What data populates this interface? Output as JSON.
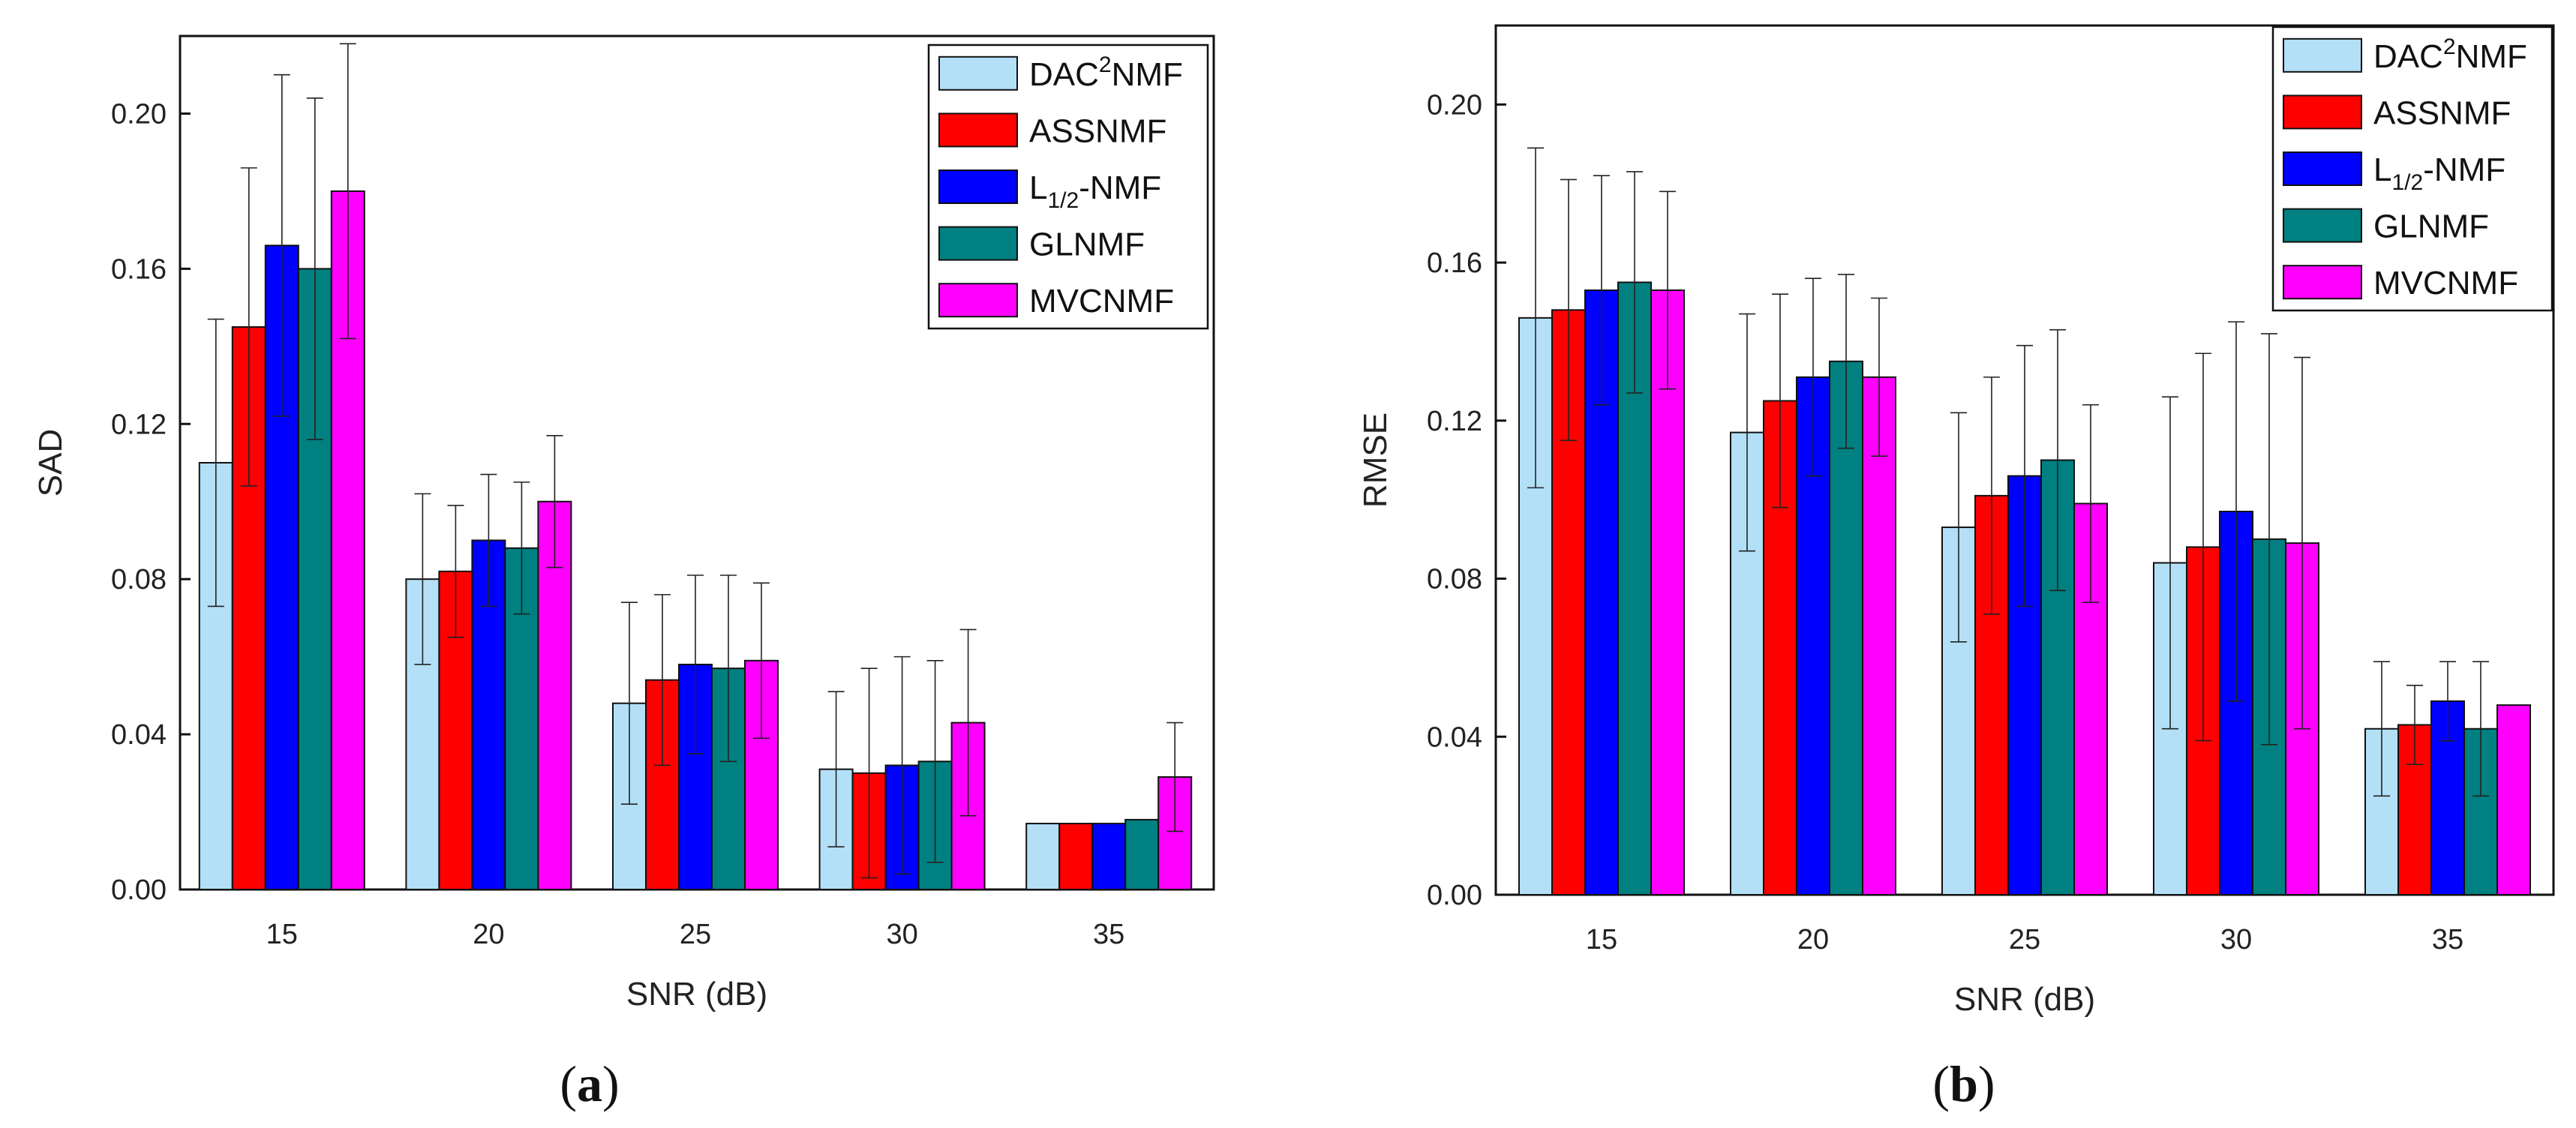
{
  "colors": {
    "DAC2NMF": "#b3e0f7",
    "ASSNMF": "#ff0000",
    "L12NMF": "#0000ff",
    "GLNMF": "#008080",
    "MVCNMF": "#ff00ff"
  },
  "chart_data": [
    {
      "id": "a",
      "type": "bar",
      "panel": {
        "open": "(",
        "letter": "a",
        "close": ")"
      },
      "title": "",
      "xlabel": "SNR (dB)",
      "ylabel": "SAD",
      "ylim": [
        0,
        0.22
      ],
      "yticks": [
        "0.00",
        "0.04",
        "0.08",
        "0.12",
        "0.16",
        "0.20"
      ],
      "categories": [
        "15",
        "20",
        "25",
        "30",
        "35"
      ],
      "legend_position": "top-right",
      "series": [
        {
          "key": "DAC2NMF",
          "name": "DAC2NMF",
          "legend": {
            "pre": "DAC",
            "sup": "2",
            "post": "NMF"
          },
          "values": [
            0.11,
            0.08,
            0.048,
            0.031,
            0.017
          ],
          "errors": [
            0.037,
            0.022,
            0.026,
            0.02,
            0.0
          ]
        },
        {
          "key": "ASSNMF",
          "name": "ASSNMF",
          "legend": {
            "pre": "ASSNMF"
          },
          "values": [
            0.145,
            0.082,
            0.054,
            0.03,
            0.017
          ],
          "errors": [
            0.041,
            0.017,
            0.022,
            0.027,
            0.0
          ]
        },
        {
          "key": "L12NMF",
          "name": "L1/2-NMF",
          "legend": {
            "pre": "L",
            "sub": "1/2",
            "post": "-NMF"
          },
          "values": [
            0.166,
            0.09,
            0.058,
            0.032,
            0.017
          ],
          "errors": [
            0.044,
            0.017,
            0.023,
            0.028,
            0.0
          ]
        },
        {
          "key": "GLNMF",
          "name": "GLNMF",
          "legend": {
            "pre": "GLNMF"
          },
          "values": [
            0.16,
            0.088,
            0.057,
            0.033,
            0.018
          ],
          "errors": [
            0.044,
            0.017,
            0.024,
            0.026,
            0.0
          ]
        },
        {
          "key": "MVCNMF",
          "name": "MVCNMF",
          "legend": {
            "pre": "MVCNMF"
          },
          "values": [
            0.18,
            0.1,
            0.059,
            0.043,
            0.029
          ],
          "errors": [
            0.038,
            0.017,
            0.02,
            0.024,
            0.014
          ]
        }
      ]
    },
    {
      "id": "b",
      "type": "bar",
      "panel": {
        "open": "(",
        "letter": "b",
        "close": ")"
      },
      "title": "",
      "xlabel": "SNR (dB)",
      "ylabel": "RMSE",
      "ylim": [
        0,
        0.22
      ],
      "yticks": [
        "0.00",
        "0.04",
        "0.08",
        "0.12",
        "0.16",
        "0.20"
      ],
      "categories": [
        "15",
        "20",
        "25",
        "30",
        "35"
      ],
      "legend_position": "top-right",
      "series": [
        {
          "key": "DAC2NMF",
          "name": "DAC2NMF",
          "legend": {
            "pre": "DAC",
            "sup": "2",
            "post": "NMF"
          },
          "values": [
            0.146,
            0.117,
            0.093,
            0.084,
            0.042
          ],
          "errors": [
            0.043,
            0.03,
            0.029,
            0.042,
            0.017
          ]
        },
        {
          "key": "ASSNMF",
          "name": "ASSNMF",
          "legend": {
            "pre": "ASSNMF"
          },
          "values": [
            0.148,
            0.125,
            0.101,
            0.088,
            0.043
          ],
          "errors": [
            0.033,
            0.027,
            0.03,
            0.049,
            0.01
          ]
        },
        {
          "key": "L12NMF",
          "name": "L1/2-NMF",
          "legend": {
            "pre": "L",
            "sub": "1/2",
            "post": "-NMF"
          },
          "values": [
            0.153,
            0.131,
            0.106,
            0.097,
            0.049
          ],
          "errors": [
            0.029,
            0.025,
            0.033,
            0.048,
            0.01
          ]
        },
        {
          "key": "GLNMF",
          "name": "GLNMF",
          "legend": {
            "pre": "GLNMF"
          },
          "values": [
            0.155,
            0.135,
            0.11,
            0.09,
            0.042
          ],
          "errors": [
            0.028,
            0.022,
            0.033,
            0.052,
            0.017
          ]
        },
        {
          "key": "MVCNMF",
          "name": "MVCNMF",
          "legend": {
            "pre": "MVCNMF"
          },
          "values": [
            0.153,
            0.131,
            0.099,
            0.089,
            0.048
          ],
          "errors": [
            0.025,
            0.02,
            0.025,
            0.047,
            0.0
          ]
        }
      ]
    }
  ]
}
